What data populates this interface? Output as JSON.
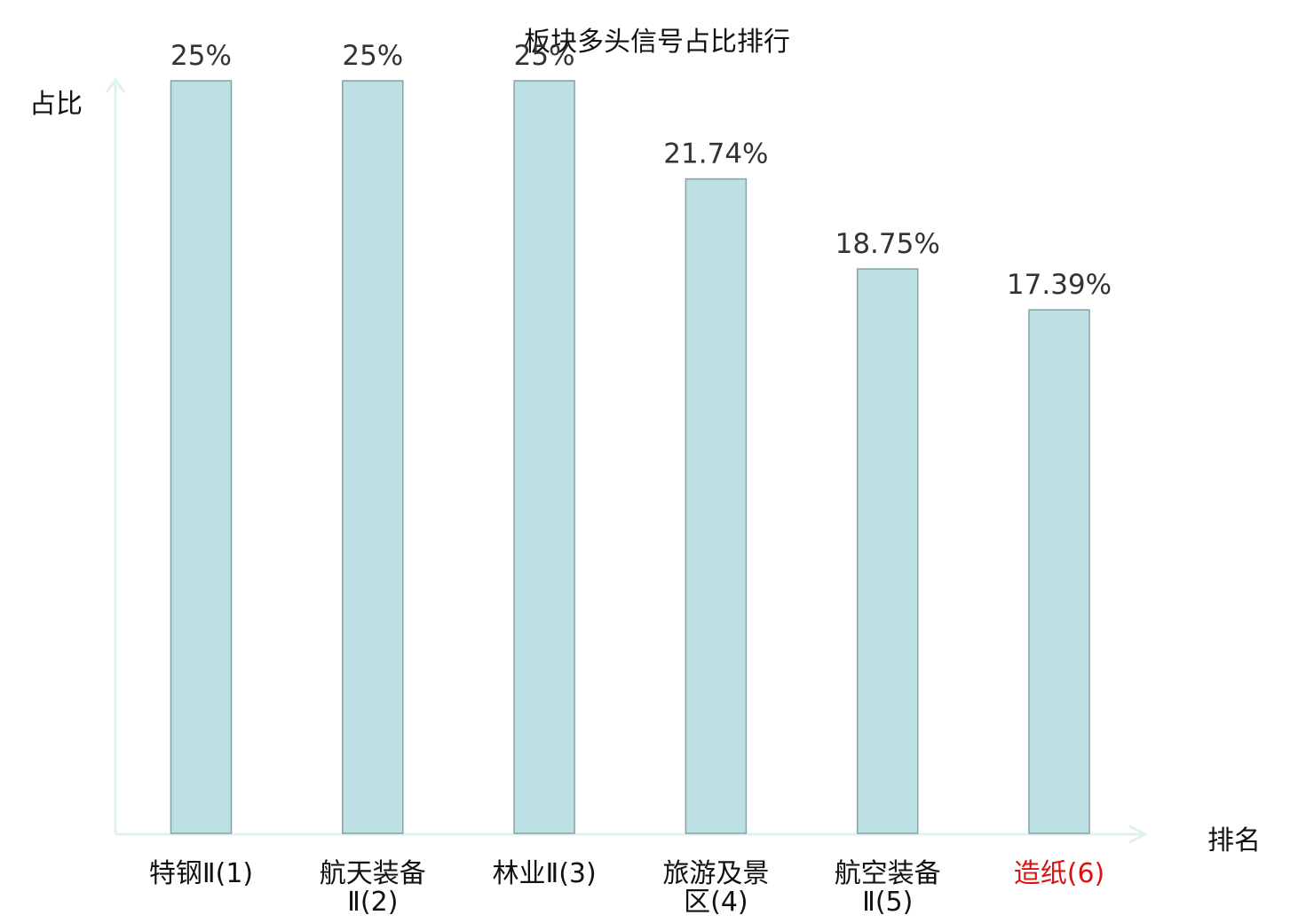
{
  "chart_data": {
    "type": "bar",
    "title": "板块多头信号占比排行",
    "xlabel": "排名",
    "ylabel": "占比",
    "categories": [
      {
        "lines": [
          "特钢Ⅱ(1)"
        ],
        "highlight": false
      },
      {
        "lines": [
          "航天装备",
          "Ⅱ(2)"
        ],
        "highlight": false
      },
      {
        "lines": [
          "林业Ⅱ(3)"
        ],
        "highlight": false
      },
      {
        "lines": [
          "旅游及景",
          "区(4)"
        ],
        "highlight": false
      },
      {
        "lines": [
          "航空装备",
          "Ⅱ(5)"
        ],
        "highlight": false
      },
      {
        "lines": [
          "造纸(6)"
        ],
        "highlight": true
      }
    ],
    "values": [
      25,
      25,
      25,
      21.74,
      18.75,
      17.39
    ],
    "value_labels": [
      "25%",
      "25%",
      "25%",
      "21.74%",
      "18.75%",
      "17.39%"
    ],
    "ylim": [
      0,
      25
    ],
    "grid": false,
    "legend": "none",
    "colors": {
      "bar_fill": "#bce0e3",
      "bar_stroke": "#86a3a6",
      "axis": "#dff2f0",
      "label_text": "#333333",
      "category_text": "#111111",
      "highlight_text": "#dd1111"
    }
  }
}
